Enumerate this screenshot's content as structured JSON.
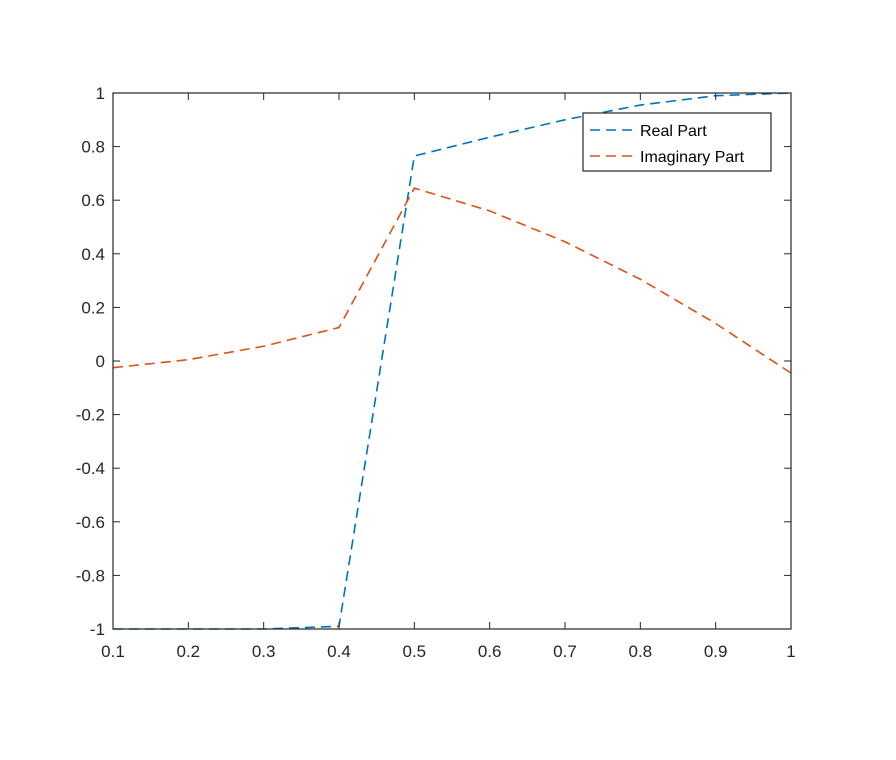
{
  "chart_data": {
    "type": "line",
    "title": "",
    "xlabel": "",
    "ylabel": "",
    "xlim": [
      0.1,
      1
    ],
    "ylim": [
      -1,
      1
    ],
    "xticks": [
      0.1,
      0.2,
      0.3,
      0.4,
      0.5,
      0.6,
      0.7,
      0.8,
      0.9,
      1
    ],
    "xtick_labels": [
      "0.1",
      "0.2",
      "0.3",
      "0.4",
      "0.5",
      "0.6",
      "0.7",
      "0.8",
      "0.9",
      "1"
    ],
    "yticks": [
      -1,
      -0.8,
      -0.6,
      -0.4,
      -0.2,
      0,
      0.2,
      0.4,
      0.6,
      0.8,
      1
    ],
    "ytick_labels": [
      "-1",
      "-0.8",
      "-0.6",
      "-0.4",
      "-0.2",
      "0",
      "0.2",
      "0.4",
      "0.6",
      "0.8",
      "1"
    ],
    "grid": false,
    "legend_position": "top-right",
    "x": [
      0.1,
      0.2,
      0.3,
      0.4,
      0.5,
      0.6,
      0.7,
      0.8,
      0.9,
      1.0
    ],
    "series": [
      {
        "name": "Real Part",
        "color": "#0072BD",
        "line_style": "dashed",
        "values": [
          -1.0,
          -1.0,
          -1.0,
          -0.99,
          0.765,
          0.835,
          0.9,
          0.955,
          0.99,
          1.0
        ]
      },
      {
        "name": "Imaginary Part",
        "color": "#D95319",
        "line_style": "dashed",
        "values": [
          -0.025,
          0.005,
          0.055,
          0.125,
          0.645,
          0.56,
          0.445,
          0.305,
          0.14,
          -0.045
        ]
      }
    ]
  }
}
